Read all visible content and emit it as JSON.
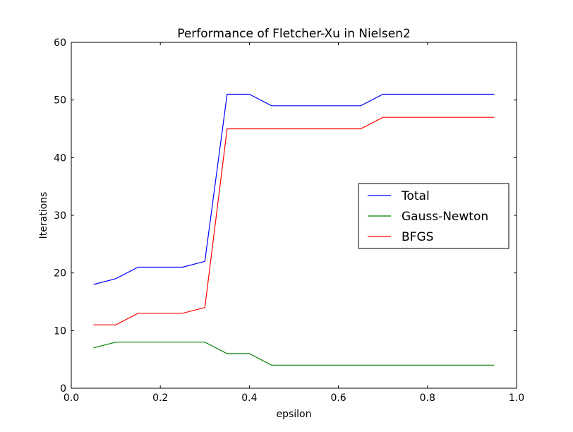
{
  "chart_data": {
    "type": "line",
    "title": "Performance of Fletcher-Xu in Nielsen2",
    "xlabel": "epsilon",
    "ylabel": "Iterations",
    "xlim": [
      0.0,
      1.0
    ],
    "ylim": [
      0,
      60
    ],
    "xticks": [
      0.0,
      0.2,
      0.4,
      0.6,
      0.8,
      1.0
    ],
    "xtick_labels": [
      "0.0",
      "0.2",
      "0.4",
      "0.6",
      "0.8",
      "1.0"
    ],
    "yticks": [
      0,
      10,
      20,
      30,
      40,
      50,
      60
    ],
    "ytick_labels": [
      "0",
      "10",
      "20",
      "30",
      "40",
      "50",
      "60"
    ],
    "grid": false,
    "legend_position": "center-right",
    "x": [
      0.05,
      0.1,
      0.15,
      0.2,
      0.25,
      0.3,
      0.35,
      0.4,
      0.45,
      0.5,
      0.55,
      0.6,
      0.65,
      0.7,
      0.75,
      0.8,
      0.85,
      0.9,
      0.95
    ],
    "series": [
      {
        "name": "Total",
        "color": "#0000ff",
        "values": [
          18,
          19,
          21,
          21,
          21,
          22,
          51,
          51,
          49,
          49,
          49,
          49,
          49,
          51,
          51,
          51,
          51,
          51,
          51
        ]
      },
      {
        "name": "Gauss-Newton",
        "color": "#008000",
        "values": [
          7,
          8,
          8,
          8,
          8,
          8,
          6,
          6,
          4,
          4,
          4,
          4,
          4,
          4,
          4,
          4,
          4,
          4,
          4
        ]
      },
      {
        "name": "BFGS",
        "color": "#ff0000",
        "values": [
          11,
          11,
          13,
          13,
          13,
          14,
          45,
          45,
          45,
          45,
          45,
          45,
          45,
          47,
          47,
          47,
          47,
          47,
          47
        ]
      }
    ]
  }
}
